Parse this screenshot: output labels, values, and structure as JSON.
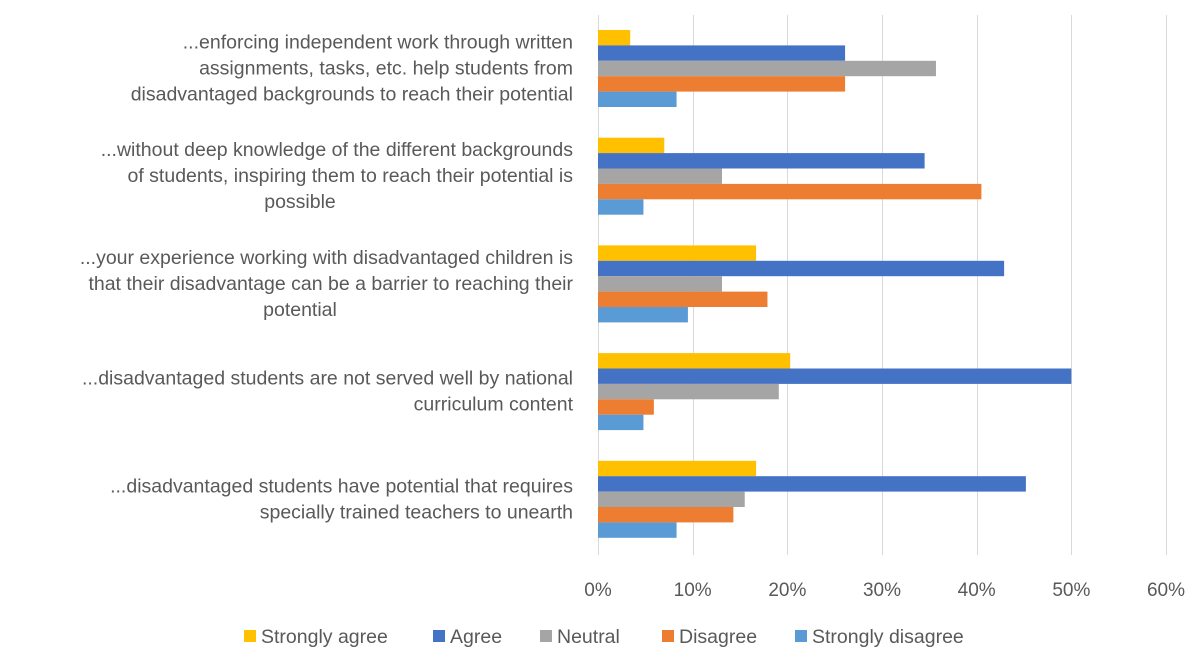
{
  "chart_data": {
    "type": "bar",
    "orientation": "horizontal",
    "title": "",
    "xlabel": "",
    "ylabel": "",
    "xlim": [
      0,
      60
    ],
    "tick_values": [
      0,
      10,
      20,
      30,
      40,
      50,
      60
    ],
    "tick_labels": [
      "0%",
      "10%",
      "20%",
      "30%",
      "40%",
      "50%",
      "60%"
    ],
    "grid": true,
    "legend_position": "bottom",
    "categories": [
      {
        "lines": [
          "...enforcing independent work through written",
          "assignments, tasks, etc. help students from",
          "disadvantaged backgrounds to reach their potential"
        ],
        "text": "...enforcing independent work through written assignments, tasks, etc. help students from disadvantaged backgrounds to reach their potential"
      },
      {
        "lines": [
          "...without deep knowledge of the different backgrounds",
          "of students, inspiring them to reach their potential is",
          "possible"
        ],
        "text": "...without deep knowledge of the different backgrounds of students, inspiring them to reach their potential is possible"
      },
      {
        "lines": [
          "...your experience working with disadvantaged children is",
          "that their disadvantage can be a barrier to reaching their",
          "potential"
        ],
        "text": "...your experience working with disadvantaged children is that their disadvantage can be a barrier to reaching their potential"
      },
      {
        "lines": [
          "...disadvantaged students are not served well by national",
          "curriculum content"
        ],
        "text": "...disadvantaged students are not served well by national curriculum content"
      },
      {
        "lines": [
          "...disadvantaged students have potential that requires",
          "specially trained teachers to unearth"
        ],
        "text": "...disadvantaged students have potential that requires specially trained teachers to unearth"
      }
    ],
    "series": [
      {
        "name": "Strongly agree",
        "color": "#ffc000",
        "values": [
          3.4,
          7.0,
          16.7,
          20.3,
          16.7
        ]
      },
      {
        "name": "Agree",
        "color": "#4472c4",
        "values": [
          26.1,
          34.5,
          42.9,
          50.0,
          45.2
        ]
      },
      {
        "name": "Neutral",
        "color": "#a5a5a5",
        "values": [
          35.7,
          13.1,
          13.1,
          19.1,
          15.5
        ]
      },
      {
        "name": "Disagree",
        "color": "#ed7d31",
        "values": [
          26.1,
          40.5,
          17.9,
          5.9,
          14.3
        ]
      },
      {
        "name": "Strongly disagree",
        "color": "#5b9bd5",
        "values": [
          8.3,
          4.8,
          9.5,
          4.8,
          8.3
        ]
      }
    ]
  }
}
